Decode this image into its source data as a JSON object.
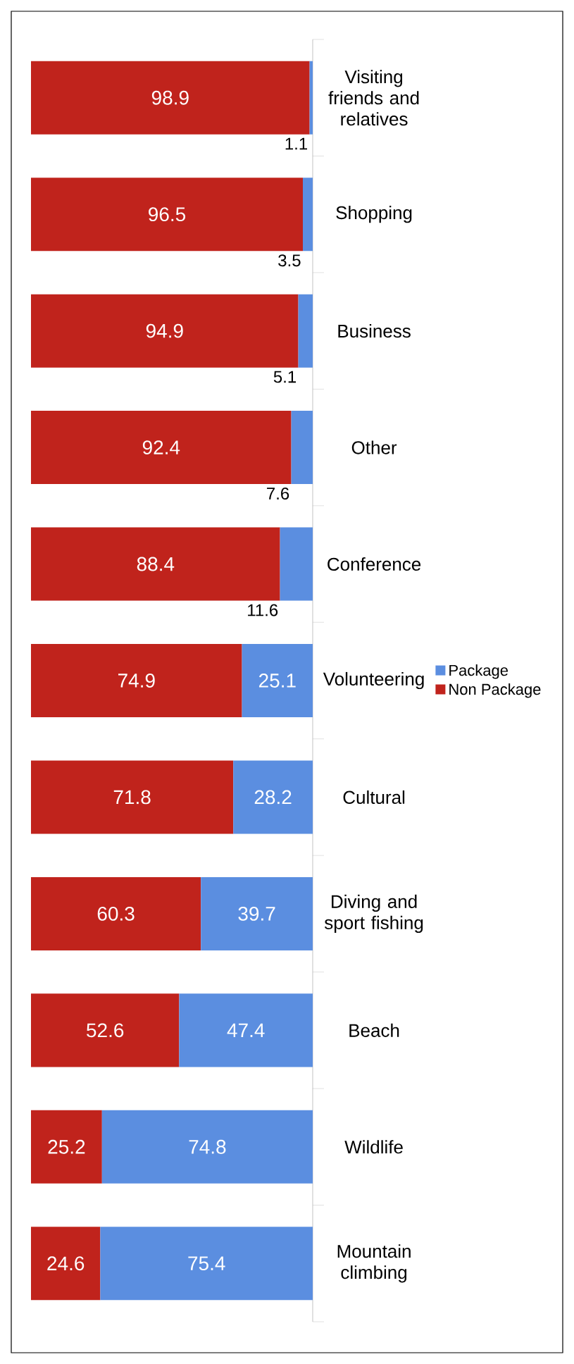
{
  "chart_data": {
    "type": "bar",
    "orientation": "horizontal",
    "stacked": true,
    "data_labels": true,
    "legend": "right",
    "categories": [
      "Visiting friends and relatives",
      "Shopping",
      "Business",
      "Other",
      "Conference",
      "Volunteering",
      "Cultural",
      "Diving and sport fishing",
      "Beach",
      "Wildlife",
      "Mountain climbing"
    ],
    "series": [
      {
        "name": "Package",
        "color": "#5b8ee0",
        "values": [
          1.1,
          3.5,
          5.1,
          7.6,
          11.6,
          25.1,
          28.2,
          39.7,
          47.4,
          74.8,
          75.4
        ]
      },
      {
        "name": "Non Package",
        "color": "#c0231c",
        "values": [
          98.9,
          96.5,
          94.9,
          92.4,
          88.4,
          74.9,
          71.8,
          60.3,
          52.6,
          25.2,
          24.6
        ]
      }
    ]
  }
}
